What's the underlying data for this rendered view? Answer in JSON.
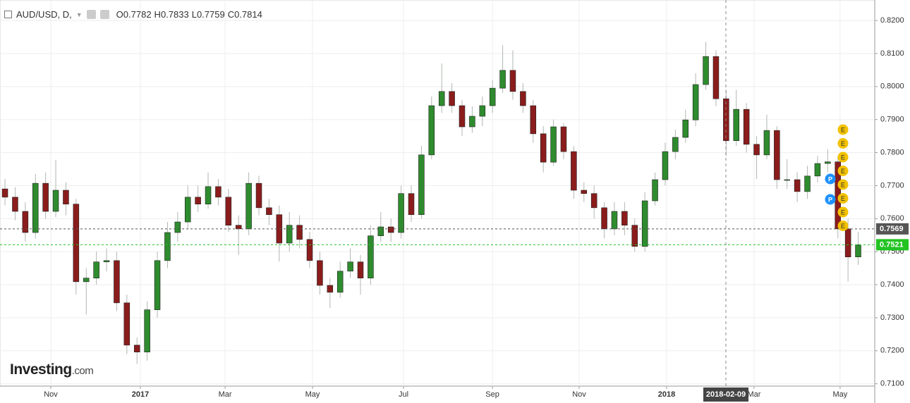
{
  "chart_data": {
    "type": "candlestick",
    "header": {
      "symbol": "AUD/USD, D,",
      "quote": [
        {
          "label": "O",
          "value": 0.7782
        },
        {
          "label": "H",
          "value": 0.7833
        },
        {
          "label": "L",
          "value": 0.7759
        },
        {
          "label": "C",
          "value": 0.7814
        }
      ]
    },
    "watermark": [
      "Investing",
      ".com"
    ],
    "up_color": "#2e8b2e",
    "down_color": "#8b1c1c",
    "grid": true,
    "ylim": [
      0.7093,
      0.8262
    ],
    "xlim": [
      -0.49,
      85.63
    ],
    "yticks": [
      {
        "value": 0.71,
        "label": "0.7100"
      },
      {
        "value": 0.72,
        "label": "0.7200"
      },
      {
        "value": 0.73,
        "label": "0.7300"
      },
      {
        "value": 0.74,
        "label": "0.7400"
      },
      {
        "value": 0.75,
        "label": "0.7500"
      },
      {
        "value": 0.76,
        "label": "0.7600"
      },
      {
        "value": 0.77,
        "label": "0.7700"
      },
      {
        "value": 0.78,
        "label": "0.7800"
      },
      {
        "value": 0.79,
        "label": "0.7900"
      },
      {
        "value": 0.8,
        "label": "0.8000"
      },
      {
        "value": 0.81,
        "label": "0.8100"
      },
      {
        "value": 0.82,
        "label": "0.8200"
      }
    ],
    "xticks": [
      {
        "value": 4.51,
        "label": "Nov"
      },
      {
        "value": 13.33,
        "label": "2017"
      },
      {
        "value": 21.67,
        "label": "Mar"
      },
      {
        "value": 30.28,
        "label": "May"
      },
      {
        "value": 39.24,
        "label": "Jul"
      },
      {
        "value": 47.99,
        "label": "Sep"
      },
      {
        "value": 56.53,
        "label": "Nov"
      },
      {
        "value": 65.14,
        "label": "2018"
      },
      {
        "value": 73.75,
        "label": "Mar"
      },
      {
        "value": 82.22,
        "label": "May"
      }
    ],
    "crosshair_label": "2018-02-09",
    "price_lines": [
      {
        "value": 0.7569,
        "label": "0.7569",
        "color": "#555555"
      },
      {
        "value": 0.7521,
        "label": "0.7521",
        "color": "#22c322"
      }
    ],
    "events": {
      "earnings": [
        "E",
        "E",
        "E",
        "E",
        "E",
        "E",
        "E",
        "E"
      ],
      "pivots": [
        "P",
        "P"
      ]
    },
    "open": [
      0.769,
      0.7665,
      0.7622,
      0.7558,
      0.7707,
      0.7622,
      0.7686,
      0.7644,
      0.7409,
      0.742,
      0.7469,
      0.7473,
      0.7345,
      0.7217,
      0.7196,
      0.7324,
      0.7473,
      0.7558,
      0.759,
      0.7665,
      0.7644,
      0.7697,
      0.7665,
      0.758,
      0.7569,
      0.7707,
      0.7633,
      0.7612,
      0.7526,
      0.758,
      0.7537,
      0.7473,
      0.7398,
      0.7377,
      0.7441,
      0.7469,
      0.742,
      0.7548,
      0.7575,
      0.7558,
      0.7676,
      0.7612,
      0.7793,
      0.7942,
      0.7985,
      0.7942,
      0.7878,
      0.791,
      0.7942,
      0.7995,
      0.8049,
      0.7985,
      0.7942,
      0.7857,
      0.7771,
      0.7878,
      0.7803,
      0.7686,
      0.7676,
      0.7633,
      0.7569,
      0.7622,
      0.758,
      0.7516,
      0.7654,
      0.7718,
      0.7803,
      0.7846,
      0.7899,
      0.8006,
      0.8091,
      0.7963,
      0.7836,
      0.7931,
      0.7825,
      0.7793,
      0.7867,
      0.7718,
      0.7718,
      0.7682,
      0.7729,
      0.7767,
      0.7772,
      0.7569,
      0.7484
    ],
    "high": [
      0.772,
      0.7695,
      0.765,
      0.7735,
      0.774,
      0.7778,
      0.771,
      0.766,
      0.745,
      0.75,
      0.751,
      0.75,
      0.737,
      0.724,
      0.735,
      0.75,
      0.759,
      0.762,
      0.77,
      0.77,
      0.774,
      0.772,
      0.769,
      0.761,
      0.774,
      0.773,
      0.766,
      0.764,
      0.762,
      0.761,
      0.756,
      0.75,
      0.742,
      0.747,
      0.751,
      0.749,
      0.758,
      0.762,
      0.76,
      0.77,
      0.77,
      0.782,
      0.797,
      0.807,
      0.801,
      0.796,
      0.794,
      0.797,
      0.802,
      0.8125,
      0.811,
      0.801,
      0.796,
      0.788,
      0.79,
      0.789,
      0.782,
      0.771,
      0.77,
      0.765,
      0.765,
      0.765,
      0.76,
      0.768,
      0.774,
      0.783,
      0.787,
      0.793,
      0.804,
      0.8135,
      0.811,
      0.799,
      0.799,
      0.795,
      0.785,
      0.7915,
      0.788,
      0.778,
      0.774,
      0.776,
      0.779,
      0.781,
      0.779,
      0.76,
      0.756
    ],
    "low": [
      0.764,
      0.7595,
      0.753,
      0.754,
      0.76,
      0.7605,
      0.761,
      0.737,
      0.731,
      0.74,
      0.744,
      0.732,
      0.719,
      0.716,
      0.717,
      0.73,
      0.745,
      0.753,
      0.757,
      0.762,
      0.763,
      0.764,
      0.756,
      0.749,
      0.755,
      0.761,
      0.758,
      0.747,
      0.75,
      0.751,
      0.745,
      0.737,
      0.733,
      0.736,
      0.742,
      0.737,
      0.74,
      0.753,
      0.753,
      0.754,
      0.759,
      0.76,
      0.778,
      0.792,
      0.792,
      0.785,
      0.786,
      0.788,
      0.792,
      0.798,
      0.796,
      0.792,
      0.783,
      0.774,
      0.776,
      0.778,
      0.766,
      0.765,
      0.76,
      0.754,
      0.755,
      0.755,
      0.75,
      0.75,
      0.764,
      0.77,
      0.778,
      0.783,
      0.788,
      0.799,
      0.794,
      0.779,
      0.782,
      0.78,
      0.772,
      0.778,
      0.769,
      0.769,
      0.765,
      0.766,
      0.771,
      0.774,
      0.754,
      0.741,
      0.746
    ],
    "close": [
      0.7665,
      0.7622,
      0.7558,
      0.7707,
      0.7622,
      0.7686,
      0.7644,
      0.7409,
      0.742,
      0.7469,
      0.7473,
      0.7345,
      0.7217,
      0.7196,
      0.7324,
      0.7473,
      0.7558,
      0.759,
      0.7665,
      0.7644,
      0.7697,
      0.7665,
      0.758,
      0.7569,
      0.7707,
      0.7633,
      0.7612,
      0.7526,
      0.758,
      0.7537,
      0.7473,
      0.7398,
      0.7377,
      0.7441,
      0.7469,
      0.742,
      0.7548,
      0.7575,
      0.7558,
      0.7676,
      0.7612,
      0.7793,
      0.7942,
      0.7985,
      0.7942,
      0.7878,
      0.791,
      0.7942,
      0.7995,
      0.8049,
      0.7985,
      0.7942,
      0.7857,
      0.7771,
      0.7878,
      0.7803,
      0.7686,
      0.7676,
      0.7633,
      0.7569,
      0.7622,
      0.758,
      0.7516,
      0.7654,
      0.7718,
      0.7803,
      0.7846,
      0.7899,
      0.8006,
      0.8091,
      0.7963,
      0.7836,
      0.7931,
      0.7825,
      0.7793,
      0.7867,
      0.7718,
      0.7718,
      0.7682,
      0.7729,
      0.7767,
      0.7772,
      0.7569,
      0.7484,
      0.7521
    ]
  }
}
